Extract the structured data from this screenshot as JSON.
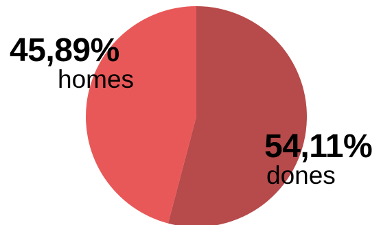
{
  "chart_data": {
    "type": "pie",
    "slices": [
      {
        "label": "dones",
        "value": 54.11,
        "display": "54,11%",
        "color": "#b74a4a"
      },
      {
        "label": "homes",
        "value": 45.89,
        "display": "45,89%",
        "color": "#e95858"
      }
    ],
    "start_angle": "top",
    "direction": "clockwise"
  }
}
